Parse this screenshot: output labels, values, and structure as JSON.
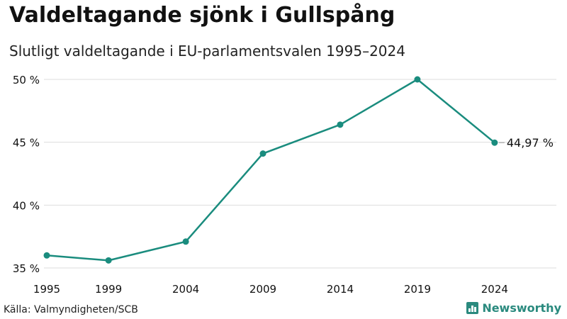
{
  "header": {
    "title": "Valdeltagande sjönk i Gullspång",
    "subtitle": "Slutligt valdeltagande i EU-parlamentsvalen 1995–2024"
  },
  "footer": {
    "source": "Källa: Valmyndigheten/SCB",
    "brand": "Newsworthy"
  },
  "colors": {
    "line": "#1a8c7e",
    "grid": "#dddddd",
    "text": "#111111"
  },
  "chart_data": {
    "type": "line",
    "title": "Valdeltagande sjönk i Gullspång",
    "subtitle": "Slutligt valdeltagande i EU-parlamentsvalen 1995–2024",
    "xlabel": "",
    "ylabel": "",
    "x": [
      1995,
      1999,
      2004,
      2009,
      2014,
      2019,
      2024
    ],
    "x_ticks": [
      "1995",
      "1999",
      "2004",
      "2009",
      "2014",
      "2019",
      "2024"
    ],
    "series": [
      {
        "values": [
          36.0,
          35.6,
          37.1,
          44.1,
          46.4,
          50.0,
          44.97
        ]
      }
    ],
    "ylim": [
      35,
      50
    ],
    "xlim": [
      1995,
      2028
    ],
    "y_ticks": [
      35,
      40,
      45,
      50
    ],
    "y_tick_labels": [
      "35 %",
      "40 %",
      "45 %",
      "50 %"
    ],
    "end_label": "44,97 %",
    "grid": "horizontal",
    "legend": "none"
  }
}
